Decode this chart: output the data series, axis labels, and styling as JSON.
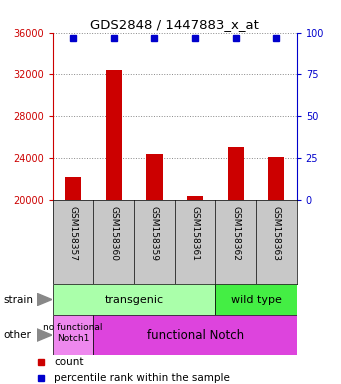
{
  "title": "GDS2848 / 1447883_x_at",
  "samples": [
    "GSM158357",
    "GSM158360",
    "GSM158359",
    "GSM158361",
    "GSM158362",
    "GSM158363"
  ],
  "counts": [
    22200,
    32400,
    24400,
    20400,
    25000,
    24100
  ],
  "ylim_left": [
    20000,
    36000
  ],
  "ylim_right": [
    0,
    100
  ],
  "yticks_left": [
    20000,
    24000,
    28000,
    32000,
    36000
  ],
  "yticks_right": [
    0,
    25,
    50,
    75,
    100
  ],
  "bar_color": "#cc0000",
  "dot_color": "#0000cc",
  "strain_transgenic_label": "transgenic",
  "strain_wildtype_label": "wild type",
  "other_nofunc_label": "no functional\nNotch1",
  "other_func_label": "functional Notch",
  "strain_color_transgenic": "#aaffaa",
  "strain_color_wildtype": "#44ee44",
  "other_nofunc_color": "#ee88ee",
  "other_func_color": "#dd44dd",
  "left_axis_color": "#cc0000",
  "right_axis_color": "#0000cc",
  "background_color": "#ffffff",
  "grid_color": "#888888",
  "xlabels_bg": "#c8c8c8",
  "legend_count": "count",
  "legend_pct": "percentile rank within the sample"
}
